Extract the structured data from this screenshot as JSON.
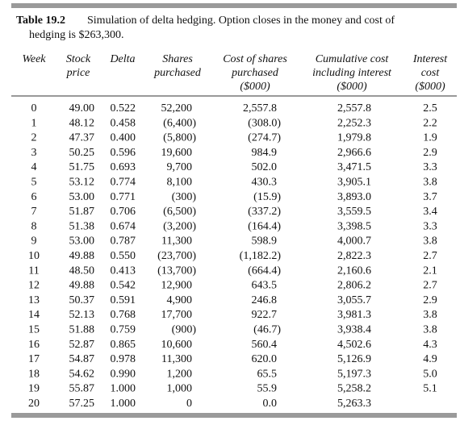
{
  "title": "Table 19.2",
  "caption": [
    "Simulation of delta hedging. Option closes in the money and cost of",
    "hedging is $263,300."
  ],
  "table": {
    "header": [
      [
        "Week"
      ],
      [
        "Stock",
        "price"
      ],
      [
        "Delta"
      ],
      [
        "Shares",
        "purchased"
      ],
      [
        "Cost of shares",
        "purchased",
        "($000)"
      ],
      [
        "Cumulative cost",
        "including interest",
        "($000)"
      ],
      [
        "Interest",
        "cost",
        "($000)"
      ]
    ],
    "rows": [
      [
        "0",
        "49.00",
        "0.522",
        "52,200",
        "2,557.8",
        "2,557.8",
        "2.5"
      ],
      [
        "1",
        "48.12",
        "0.458",
        "(6,400)",
        "(308.0)",
        "2,252.3",
        "2.2"
      ],
      [
        "2",
        "47.37",
        "0.400",
        "(5,800)",
        "(274.7)",
        "1,979.8",
        "1.9"
      ],
      [
        "3",
        "50.25",
        "0.596",
        "19,600",
        "984.9",
        "2,966.6",
        "2.9"
      ],
      [
        "4",
        "51.75",
        "0.693",
        "9,700",
        "502.0",
        "3,471.5",
        "3.3"
      ],
      [
        "5",
        "53.12",
        "0.774",
        "8,100",
        "430.3",
        "3,905.1",
        "3.8"
      ],
      [
        "6",
        "53.00",
        "0.771",
        "(300)",
        "(15.9)",
        "3,893.0",
        "3.7"
      ],
      [
        "7",
        "51.87",
        "0.706",
        "(6,500)",
        "(337.2)",
        "3,559.5",
        "3.4"
      ],
      [
        "8",
        "51.38",
        "0.674",
        "(3,200)",
        "(164.4)",
        "3,398.5",
        "3.3"
      ],
      [
        "9",
        "53.00",
        "0.787",
        "11,300",
        "598.9",
        "4,000.7",
        "3.8"
      ],
      [
        "10",
        "49.88",
        "0.550",
        "(23,700)",
        "(1,182.2)",
        "2,822.3",
        "2.7"
      ],
      [
        "11",
        "48.50",
        "0.413",
        "(13,700)",
        "(664.4)",
        "2,160.6",
        "2.1"
      ],
      [
        "12",
        "49.88",
        "0.542",
        "12,900",
        "643.5",
        "2,806.2",
        "2.7"
      ],
      [
        "13",
        "50.37",
        "0.591",
        "4,900",
        "246.8",
        "3,055.7",
        "2.9"
      ],
      [
        "14",
        "52.13",
        "0.768",
        "17,700",
        "922.7",
        "3,981.3",
        "3.8"
      ],
      [
        "15",
        "51.88",
        "0.759",
        "(900)",
        "(46.7)",
        "3,938.4",
        "3.8"
      ],
      [
        "16",
        "52.87",
        "0.865",
        "10,600",
        "560.4",
        "4,502.6",
        "4.3"
      ],
      [
        "17",
        "54.87",
        "0.978",
        "11,300",
        "620.0",
        "5,126.9",
        "4.9"
      ],
      [
        "18",
        "54.62",
        "0.990",
        "1,200",
        "65.5",
        "5,197.3",
        "5.0"
      ],
      [
        "19",
        "55.87",
        "1.000",
        "1,000",
        "55.9",
        "5,258.2",
        "5.1"
      ],
      [
        "20",
        "57.25",
        "1.000",
        "0",
        "0.0",
        "5,263.3"
      ]
    ]
  }
}
